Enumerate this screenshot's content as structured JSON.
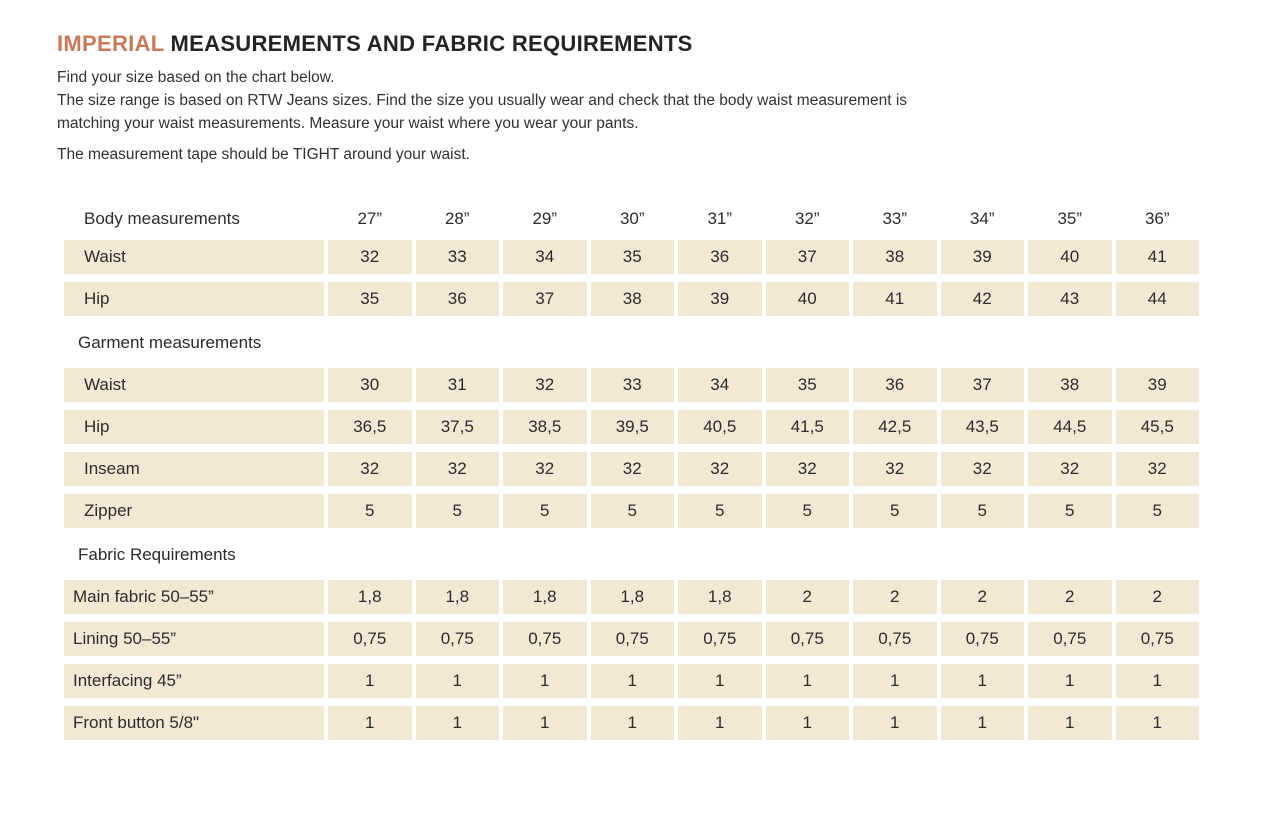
{
  "title": {
    "highlight": "IMPERIAL",
    "rest": " MEASUREMENTS AND FABRIC REQUIREMENTS"
  },
  "intro": [
    "Find your size based on the chart below.",
    "The size range is based on RTW Jeans sizes. Find the size you usually wear and check that the body waist measurement is matching your waist measurements. Measure your waist where you wear your pants.",
    "The measurement tape should be TIGHT around your waist."
  ],
  "table": {
    "header": {
      "label": "Body measurements",
      "sizes": [
        "27”",
        "28”",
        "29”",
        "30”",
        "31”",
        "32”",
        "33”",
        "34”",
        "35”",
        "36”"
      ]
    },
    "sections": [
      {
        "name": null,
        "rows": [
          {
            "label": "Waist",
            "values": [
              "32",
              "33",
              "34",
              "35",
              "36",
              "37",
              "38",
              "39",
              "40",
              "41"
            ]
          },
          {
            "label": "Hip",
            "values": [
              "35",
              "36",
              "37",
              "38",
              "39",
              "40",
              "41",
              "42",
              "43",
              "44"
            ]
          }
        ]
      },
      {
        "name": "Garment measurements",
        "rows": [
          {
            "label": "Waist",
            "values": [
              "30",
              "31",
              "32",
              "33",
              "34",
              "35",
              "36",
              "37",
              "38",
              "39"
            ]
          },
          {
            "label": "Hip",
            "values": [
              "36,5",
              "37,5",
              "38,5",
              "39,5",
              "40,5",
              "41,5",
              "42,5",
              "43,5",
              "44,5",
              "45,5"
            ]
          },
          {
            "label": "Inseam",
            "values": [
              "32",
              "32",
              "32",
              "32",
              "32",
              "32",
              "32",
              "32",
              "32",
              "32"
            ]
          },
          {
            "label": "Zipper",
            "values": [
              "5",
              "5",
              "5",
              "5",
              "5",
              "5",
              "5",
              "5",
              "5",
              "5"
            ]
          }
        ]
      },
      {
        "name": "Fabric Requirements",
        "rows": [
          {
            "label": "Main fabric 50–55”",
            "values": [
              "1,8",
              "1,8",
              "1,8",
              "1,8",
              "1,8",
              "2",
              "2",
              "2",
              "2",
              "2"
            ]
          },
          {
            "label": "Lining 50–55”",
            "values": [
              "0,75",
              "0,75",
              "0,75",
              "0,75",
              "0,75",
              "0,75",
              "0,75",
              "0,75",
              "0,75",
              "0,75"
            ]
          },
          {
            "label": "Interfacing 45”",
            "values": [
              "1",
              "1",
              "1",
              "1",
              "1",
              "1",
              "1",
              "1",
              "1",
              "1"
            ]
          },
          {
            "label": "Front button 5/8\"",
            "values": [
              "1",
              "1",
              "1",
              "1",
              "1",
              "1",
              "1",
              "1",
              "1",
              "1"
            ]
          }
        ]
      }
    ]
  },
  "colors": {
    "accent": "#c8795a",
    "row_background": "#f2e8d4",
    "text": "#2e2c29"
  }
}
